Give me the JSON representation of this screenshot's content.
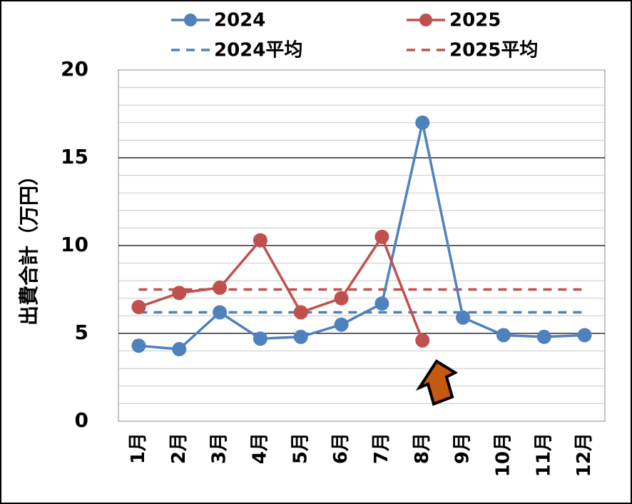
{
  "chart_data": {
    "type": "line",
    "y_label": "出費合計（万円）",
    "categories": [
      "1月",
      "2月",
      "3月",
      "4月",
      "5月",
      "6月",
      "7月",
      "8月",
      "9月",
      "10月",
      "11月",
      "12月"
    ],
    "series": [
      {
        "name": "2024",
        "color": "#4f81bd",
        "values": [
          4.3,
          4.1,
          6.2,
          4.7,
          4.8,
          5.5,
          6.7,
          17.0,
          5.9,
          4.9,
          4.8,
          4.9
        ]
      },
      {
        "name": "2025",
        "color": "#c0504d",
        "values": [
          6.5,
          7.3,
          7.6,
          10.3,
          6.2,
          7.0,
          10.5,
          4.6,
          null,
          null,
          null,
          null
        ]
      }
    ],
    "averages": [
      {
        "name": "2024平均",
        "color": "#4f81bd",
        "value": 6.2
      },
      {
        "name": "2025平均",
        "color": "#c0504d",
        "value": 7.5
      }
    ],
    "ylim": [
      0,
      20
    ],
    "yticks": [
      0,
      5,
      10,
      15,
      20
    ],
    "minor_yticks": [
      1,
      2,
      3,
      4,
      6,
      7,
      8,
      9,
      11,
      12,
      13,
      14,
      16,
      17,
      18,
      19
    ],
    "grid": true,
    "legend": "top"
  }
}
